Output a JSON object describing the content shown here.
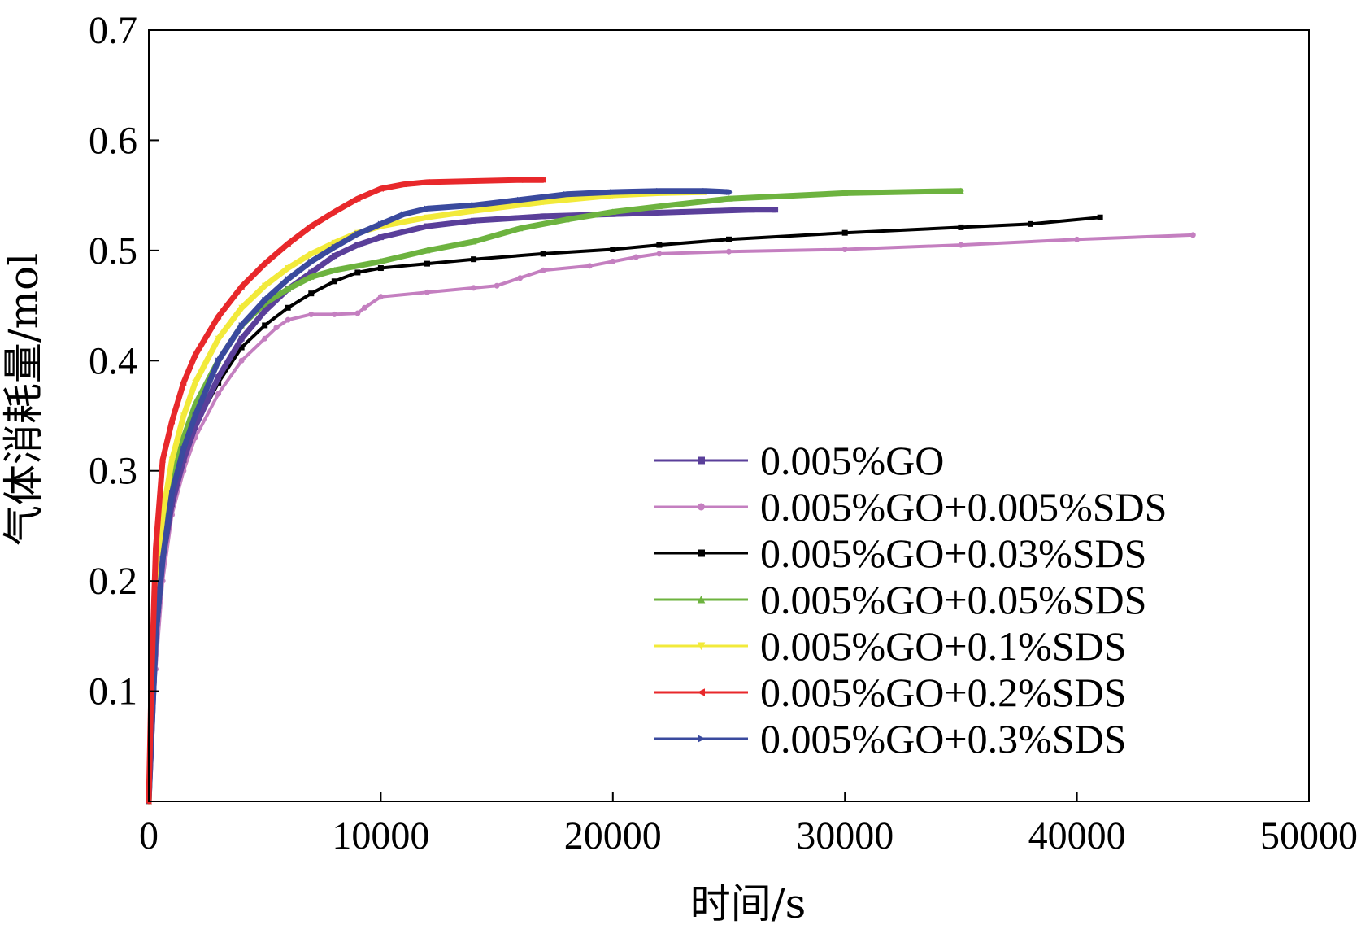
{
  "chart_data": {
    "type": "line",
    "title": "",
    "xlabel": "时间/s",
    "ylabel": "气体消耗量/mol",
    "xlim": [
      0,
      50000
    ],
    "ylim": [
      0,
      0.7
    ],
    "xticks": [
      0,
      10000,
      20000,
      30000,
      40000,
      50000
    ],
    "xtick_labels": [
      "0",
      "10000",
      "20000",
      "30000",
      "40000",
      "50000"
    ],
    "yticks": [
      0.1,
      0.2,
      0.3,
      0.4,
      0.5,
      0.6,
      0.7
    ],
    "ytick_labels": [
      "0.1",
      "0.2",
      "0.3",
      "0.4",
      "0.5",
      "0.6",
      "0.7"
    ],
    "grid": false,
    "legend_position": "bottom-right",
    "series": [
      {
        "name": "0.005%GO",
        "color": "#5a3f9a",
        "marker": "square",
        "x": [
          0,
          100,
          300,
          600,
          1000,
          1500,
          2000,
          3000,
          4000,
          5000,
          6000,
          7000,
          8000,
          9000,
          10000,
          12000,
          14000,
          17000,
          20000,
          23000,
          26000,
          27000
        ],
        "y": [
          0,
          0.05,
          0.15,
          0.22,
          0.27,
          0.31,
          0.34,
          0.385,
          0.42,
          0.445,
          0.465,
          0.48,
          0.495,
          0.505,
          0.512,
          0.522,
          0.527,
          0.531,
          0.533,
          0.535,
          0.537,
          0.537
        ]
      },
      {
        "name": "0.005%GO+0.005%SDS",
        "color": "#c47fc0",
        "marker": "circle",
        "x": [
          0,
          100,
          300,
          600,
          1000,
          1500,
          2000,
          3000,
          4000,
          5000,
          5500,
          6000,
          7000,
          8000,
          9000,
          9300,
          10000,
          12000,
          14000,
          15000,
          16000,
          17000,
          19000,
          20000,
          21000,
          22000,
          25000,
          30000,
          35000,
          40000,
          45000
        ],
        "y": [
          0,
          0.04,
          0.12,
          0.2,
          0.26,
          0.3,
          0.33,
          0.37,
          0.4,
          0.42,
          0.43,
          0.437,
          0.442,
          0.442,
          0.443,
          0.448,
          0.458,
          0.462,
          0.466,
          0.468,
          0.475,
          0.482,
          0.486,
          0.49,
          0.494,
          0.497,
          0.499,
          0.501,
          0.505,
          0.51,
          0.514
        ]
      },
      {
        "name": "0.005%GO+0.03%SDS",
        "color": "#000000",
        "marker": "square",
        "x": [
          0,
          100,
          300,
          600,
          1000,
          1500,
          2000,
          3000,
          4000,
          5000,
          6000,
          7000,
          8000,
          9000,
          10000,
          12000,
          14000,
          17000,
          20000,
          22000,
          25000,
          30000,
          35000,
          38000,
          41000
        ],
        "y": [
          0,
          0.05,
          0.16,
          0.23,
          0.27,
          0.31,
          0.34,
          0.38,
          0.412,
          0.432,
          0.448,
          0.461,
          0.472,
          0.48,
          0.484,
          0.488,
          0.492,
          0.497,
          0.501,
          0.505,
          0.51,
          0.516,
          0.521,
          0.524,
          0.53
        ]
      },
      {
        "name": "0.005%GO+0.05%SDS",
        "color": "#6db33f",
        "marker": "triangle-up",
        "x": [
          0,
          100,
          300,
          600,
          1000,
          1500,
          2000,
          3000,
          4000,
          5000,
          6000,
          7000,
          8000,
          10000,
          12000,
          14000,
          16000,
          18000,
          20000,
          22000,
          25000,
          30000,
          35000
        ],
        "y": [
          0,
          0.06,
          0.17,
          0.24,
          0.29,
          0.33,
          0.36,
          0.4,
          0.432,
          0.452,
          0.465,
          0.476,
          0.482,
          0.49,
          0.5,
          0.508,
          0.52,
          0.528,
          0.535,
          0.54,
          0.547,
          0.552,
          0.554
        ]
      },
      {
        "name": "0.005%GO+0.1%SDS",
        "color": "#f2ea3a",
        "marker": "triangle-down",
        "x": [
          0,
          100,
          300,
          600,
          1000,
          1500,
          2000,
          3000,
          4000,
          5000,
          6000,
          7000,
          8000,
          9000,
          10000,
          12000,
          14000,
          17000,
          20000,
          22000,
          24000
        ],
        "y": [
          0,
          0.07,
          0.19,
          0.26,
          0.31,
          0.35,
          0.38,
          0.42,
          0.448,
          0.468,
          0.484,
          0.497,
          0.507,
          0.516,
          0.522,
          0.53,
          0.536,
          0.544,
          0.55,
          0.552,
          0.553
        ]
      },
      {
        "name": "0.005%GO+0.2%SDS",
        "color": "#e8282b",
        "marker": "triangle-left",
        "x": [
          0,
          100,
          300,
          600,
          1000,
          1500,
          2000,
          3000,
          4000,
          5000,
          6000,
          7000,
          8000,
          9000,
          10000,
          11000,
          12000,
          14000,
          16000,
          17000
        ],
        "y": [
          0,
          0.1,
          0.23,
          0.31,
          0.345,
          0.38,
          0.405,
          0.44,
          0.467,
          0.488,
          0.506,
          0.522,
          0.535,
          0.547,
          0.556,
          0.56,
          0.562,
          0.563,
          0.564,
          0.564
        ]
      },
      {
        "name": "0.005%GO+0.3%SDS",
        "color": "#3a4a9e",
        "marker": "triangle-right",
        "x": [
          0,
          100,
          300,
          600,
          1000,
          1500,
          2000,
          3000,
          4000,
          5000,
          6000,
          7000,
          8000,
          9000,
          10000,
          11000,
          12000,
          14000,
          16000,
          18000,
          20000,
          22000,
          24000,
          25000
        ],
        "y": [
          0,
          0.05,
          0.15,
          0.22,
          0.28,
          0.32,
          0.35,
          0.4,
          0.432,
          0.455,
          0.474,
          0.49,
          0.503,
          0.515,
          0.524,
          0.533,
          0.538,
          0.541,
          0.546,
          0.551,
          0.553,
          0.554,
          0.554,
          0.553
        ]
      }
    ]
  }
}
